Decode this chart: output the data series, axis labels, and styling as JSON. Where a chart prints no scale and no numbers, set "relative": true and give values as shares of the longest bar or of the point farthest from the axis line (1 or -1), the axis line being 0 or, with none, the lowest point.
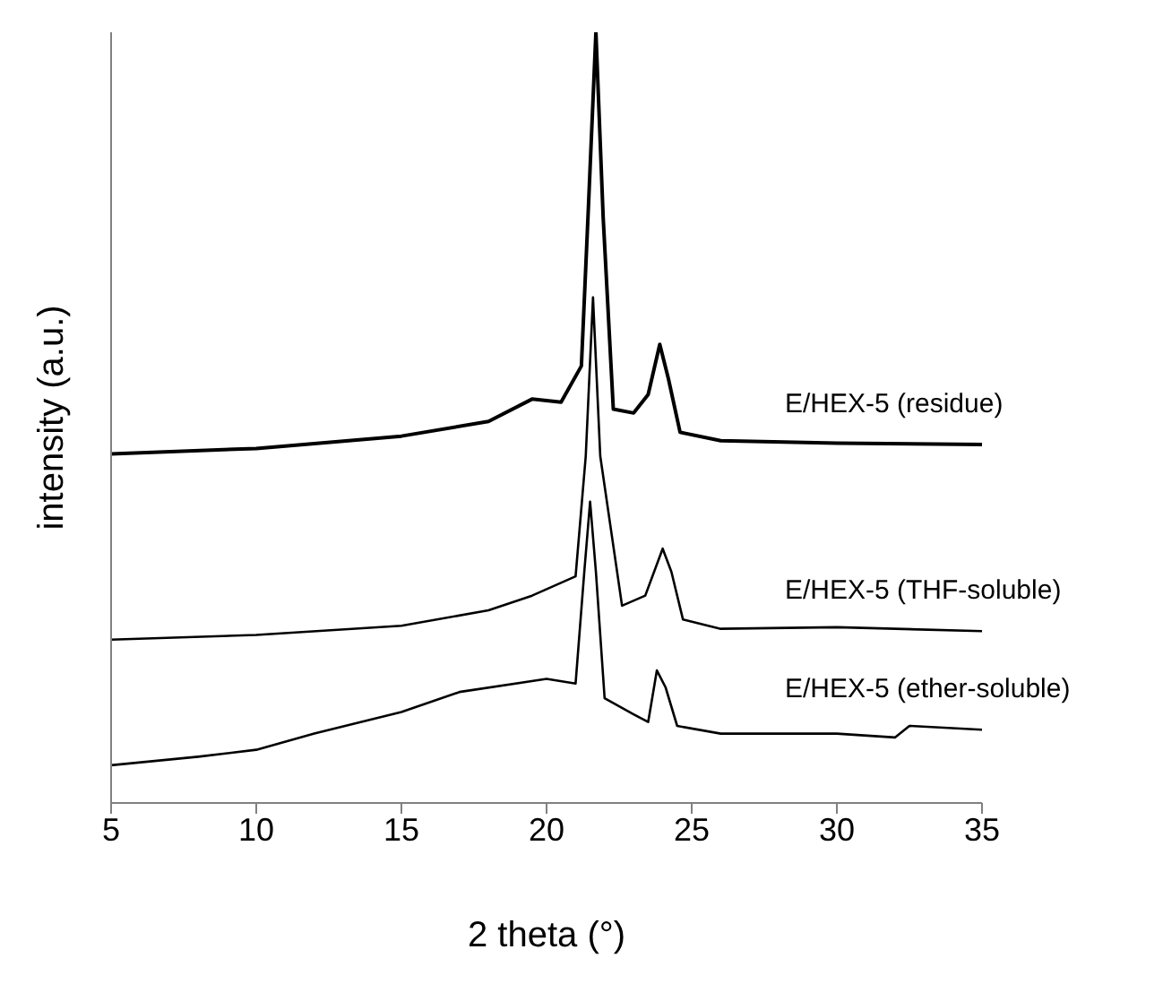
{
  "chart_data": {
    "type": "line",
    "relative": true,
    "xlabel": "2 theta (°)",
    "ylabel": "intensity (a.u.)",
    "xlim": [
      5,
      35
    ],
    "xticks": [
      5,
      10,
      15,
      20,
      25,
      30,
      35
    ],
    "grid": false,
    "legend": false,
    "marker": "none",
    "line_style": "solid",
    "series": [
      {
        "name": "E/HEX-5 (residue)",
        "color": "#000000",
        "x": [
          5,
          10,
          15,
          18,
          19.5,
          20.5,
          21.2,
          21.45,
          21.7,
          21.95,
          22.3,
          23,
          23.5,
          23.9,
          24.2,
          24.6,
          26,
          30,
          35
        ],
        "values": [
          0.453,
          0.46,
          0.476,
          0.495,
          0.524,
          0.52,
          0.567,
          0.78,
          1.0,
          0.76,
          0.511,
          0.506,
          0.53,
          0.595,
          0.55,
          0.481,
          0.47,
          0.467,
          0.465
        ]
      },
      {
        "name": "E/HEX-5 (THF-soluble)",
        "color": "#000000",
        "x": [
          5,
          10,
          15,
          18,
          19.5,
          21,
          21.35,
          21.6,
          21.85,
          22.6,
          23.4,
          24,
          24.3,
          24.7,
          26,
          30,
          35
        ],
        "values": [
          0.212,
          0.218,
          0.23,
          0.25,
          0.269,
          0.294,
          0.45,
          0.656,
          0.45,
          0.256,
          0.269,
          0.33,
          0.3,
          0.238,
          0.226,
          0.228,
          0.223
        ]
      },
      {
        "name": "E/HEX-5 (ether-soluble)",
        "color": "#000000",
        "x": [
          5,
          8,
          10,
          12,
          15,
          17,
          20,
          21,
          21.3,
          21.5,
          21.7,
          22,
          23,
          23.5,
          23.8,
          24.1,
          24.5,
          26,
          28,
          30,
          32,
          32.5,
          35
        ],
        "values": [
          0.049,
          0.06,
          0.069,
          0.09,
          0.118,
          0.144,
          0.161,
          0.155,
          0.3,
          0.391,
          0.3,
          0.136,
          0.115,
          0.105,
          0.172,
          0.15,
          0.1,
          0.09,
          0.09,
          0.09,
          0.085,
          0.1,
          0.095
        ]
      }
    ]
  }
}
